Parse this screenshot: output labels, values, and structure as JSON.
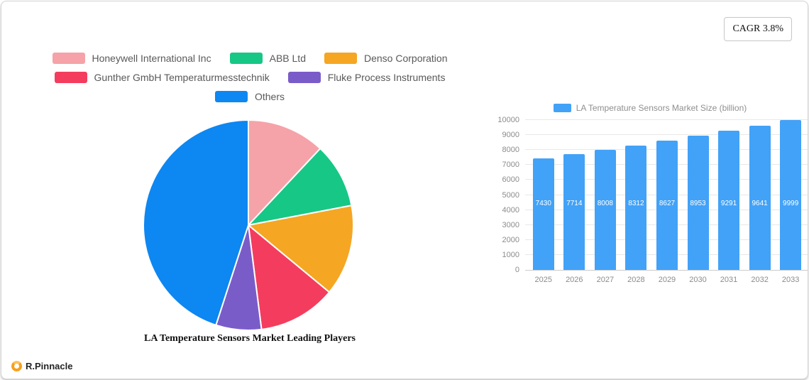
{
  "badge": {
    "label": "CAGR 3.8%"
  },
  "logo": {
    "text": "R.Pinnacle"
  },
  "chart_data": [
    {
      "type": "pie",
      "title": "LA Temperature Sensors Market Leading Players",
      "legend_position": "top",
      "start_angle": "top",
      "direction": "clockwise",
      "slices": [
        {
          "label": "Honeywell International Inc",
          "value_pct": 12,
          "color": "#f5a3a8"
        },
        {
          "label": "ABB Ltd",
          "value_pct": 10,
          "color": "#17c786"
        },
        {
          "label": "Denso Corporation",
          "value_pct": 14,
          "color": "#f5a623"
        },
        {
          "label": "Gunther GmbH Temperaturmesstechnik",
          "value_pct": 12,
          "color": "#f43d5e"
        },
        {
          "label": "Fluke Process Instruments",
          "value_pct": 7,
          "color": "#7a5cc9"
        },
        {
          "label": "Others",
          "value_pct": 45,
          "color": "#0d87f1"
        }
      ]
    },
    {
      "type": "bar",
      "series_name": "LA Temperature Sensors Market Size (billion)",
      "categories": [
        "2025",
        "2026",
        "2027",
        "2028",
        "2029",
        "2030",
        "2031",
        "2032",
        "2033"
      ],
      "values": [
        7430,
        7714,
        8008,
        8312,
        8627,
        8953,
        9291,
        9641,
        9999
      ],
      "bar_color": "#42a2f7",
      "value_label_color": "#ffffff",
      "ylim": [
        0,
        10000
      ],
      "yticks": [
        0,
        1000,
        2000,
        3000,
        4000,
        5000,
        6000,
        7000,
        8000,
        9000,
        10000
      ],
      "grid": true,
      "legend_position": "top"
    }
  ]
}
